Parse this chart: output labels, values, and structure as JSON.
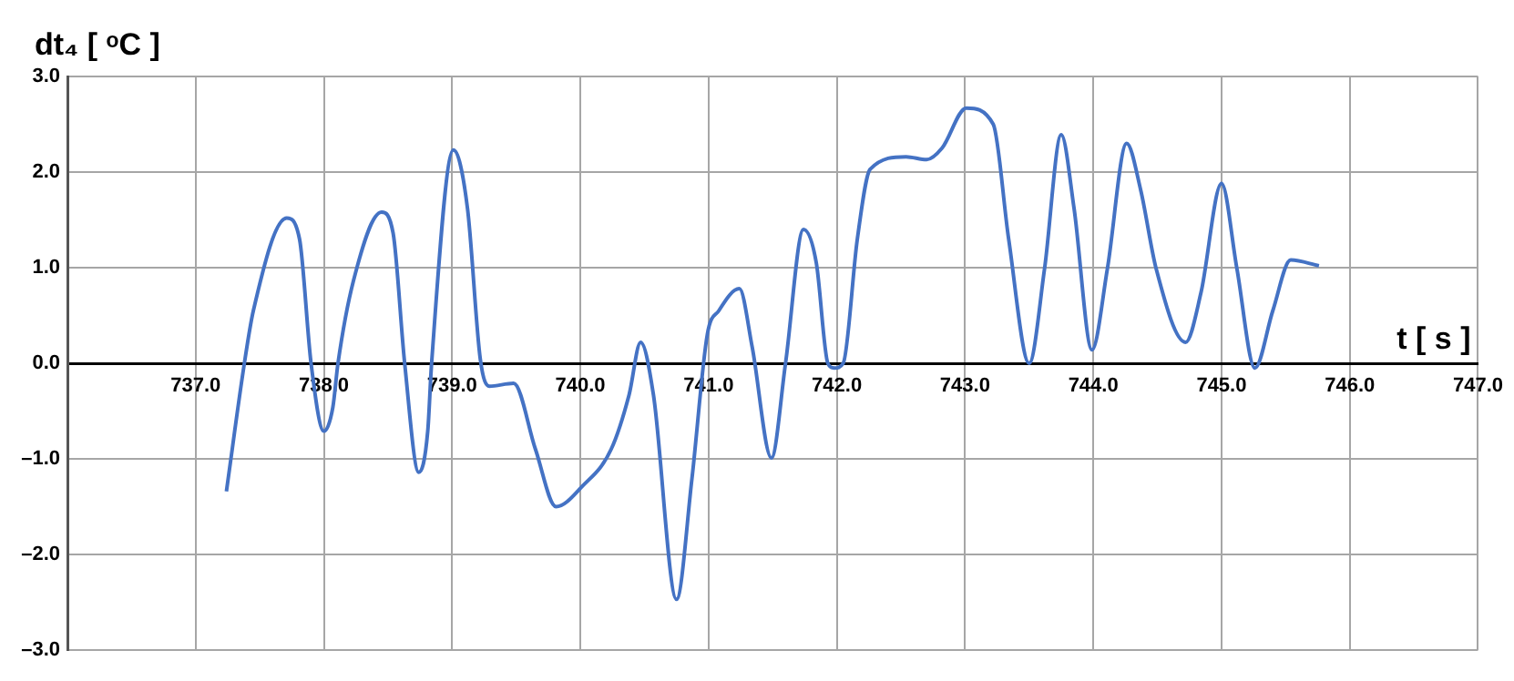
{
  "chart_data": {
    "type": "line",
    "xlabel": "t [ s ]",
    "ylabel": "dt₄ [ ᵒC ]",
    "xlim": [
      736,
      747
    ],
    "xticks": [
      {
        "value": 737,
        "label": "737.0"
      },
      {
        "value": 738,
        "label": "738.0"
      },
      {
        "value": 739,
        "label": "739.0"
      },
      {
        "value": 740,
        "label": "740.0"
      },
      {
        "value": 741,
        "label": "741.0"
      },
      {
        "value": 742,
        "label": "742.0"
      },
      {
        "value": 743,
        "label": "743.0"
      },
      {
        "value": 744,
        "label": "744.0"
      },
      {
        "value": 745,
        "label": "745.0"
      },
      {
        "value": 746,
        "label": "746.0"
      },
      {
        "value": 747,
        "label": "747.0"
      }
    ],
    "ylim": [
      -3,
      3
    ],
    "yticks": [
      {
        "value": -3,
        "label": "–3.0"
      },
      {
        "value": -2,
        "label": "–2.0"
      },
      {
        "value": -1,
        "label": "–1.0"
      },
      {
        "value": 0,
        "label": "0.0"
      },
      {
        "value": 1,
        "label": "1.0"
      },
      {
        "value": 2,
        "label": "2.0"
      },
      {
        "value": 3,
        "label": "3.0"
      }
    ],
    "grid": true,
    "marker": "none",
    "line_style": "solid",
    "series": [
      {
        "color": "#4472c4",
        "x": [
          737.24,
          737.38,
          737.45,
          737.71,
          737.81,
          737.9,
          738.0,
          738.07,
          738.11,
          738.23,
          738.45,
          738.54,
          738.63,
          738.74,
          738.81,
          738.84,
          739.01,
          739.12,
          739.22,
          739.29,
          739.48,
          739.65,
          739.81,
          740.02,
          740.24,
          740.38,
          740.47,
          740.57,
          740.75,
          740.87,
          740.99,
          741.08,
          741.24,
          741.34,
          741.49,
          741.6,
          741.74,
          741.84,
          741.93,
          741.98,
          742.05,
          742.16,
          742.26,
          742.54,
          742.7,
          742.82,
          743.01,
          743.22,
          743.34,
          743.5,
          743.62,
          743.75,
          743.85,
          743.99,
          744.11,
          744.26,
          744.37,
          744.49,
          744.72,
          744.84,
          745.0,
          745.12,
          745.26,
          745.4,
          745.54,
          745.76
        ],
        "values": [
          -1.34,
          0,
          0.55,
          1.52,
          1.3,
          0,
          -0.71,
          -0.46,
          0,
          0.86,
          1.58,
          1.36,
          0,
          -1.14,
          -0.71,
          0,
          2.23,
          1.62,
          0.04,
          -0.24,
          -0.21,
          -0.9,
          -1.5,
          -1.28,
          -0.9,
          -0.33,
          0.22,
          -0.33,
          -2.47,
          -1.21,
          0.3,
          0.55,
          0.78,
          0.17,
          -0.99,
          0,
          1.4,
          1.05,
          0,
          -0.05,
          0,
          1.3,
          2.03,
          2.16,
          2.13,
          2.25,
          2.67,
          2.5,
          1.3,
          0,
          0.99,
          2.39,
          1.62,
          0.14,
          0.99,
          2.3,
          1.81,
          0.99,
          0.22,
          0.74,
          1.88,
          0.99,
          -0.05,
          0.55,
          1.08,
          1.02
        ]
      }
    ]
  }
}
